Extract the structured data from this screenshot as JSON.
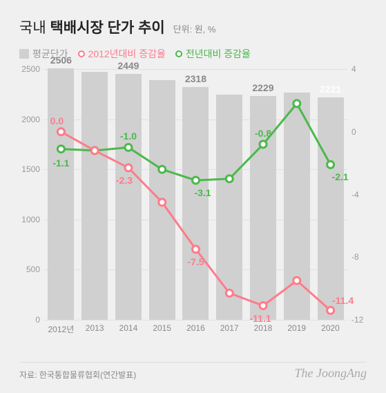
{
  "title_prefix": "국내 ",
  "title_bold": "택배시장 단가 추이",
  "unit_label": "단위: 원, %",
  "legend": {
    "bar": {
      "label": "평균단가",
      "color": "#d0d0d0",
      "text_color": "#999"
    },
    "s1": {
      "label": "2012년대비 증감율",
      "color": "#ff7b8a"
    },
    "s2": {
      "label": "전년대비 증감율",
      "color": "#4bb84b"
    }
  },
  "chart": {
    "background": "#f0f0f0",
    "grid_color": "#e0e0e0",
    "left_axis": {
      "min": 0,
      "max": 2500,
      "step": 500,
      "color": "#999"
    },
    "right_axis": {
      "min": -12,
      "max": 4,
      "step": 4,
      "color": "#999"
    },
    "categories": [
      "2012년",
      "2013",
      "2014",
      "2015",
      "2016",
      "2017",
      "2018",
      "2019",
      "2020"
    ],
    "bar_values": [
      2506,
      2475,
      2449,
      2392,
      2318,
      2248,
      2229,
      2269,
      2221
    ],
    "bar_labels": {
      "0": "2506",
      "2": "2449",
      "4": "2318",
      "6": "2229",
      "8": "2221"
    },
    "bar_label_colors": {
      "0": "#888",
      "2": "#888",
      "4": "#888",
      "6": "#888",
      "8": "#fff"
    },
    "bar_color": "#d0d0d0",
    "s1_values": [
      0.0,
      -1.2,
      -2.3,
      -4.5,
      -7.5,
      -10.3,
      -11.1,
      -9.5,
      -11.4
    ],
    "s1_labels": {
      "0": "0.0",
      "2": "-2.3",
      "4": "-7.5",
      "6": "-11.1",
      "8": "-11.4"
    },
    "s1_color": "#ff7b8a",
    "s2_values": [
      -1.1,
      -1.2,
      -1.0,
      -2.4,
      -3.1,
      -3.0,
      -0.8,
      1.8,
      -2.1
    ],
    "s2_labels": {
      "0": "-1.1",
      "2": "-1.0",
      "4": "-3.1",
      "6": "-0.8",
      "8": "-2.1"
    },
    "s2_color": "#4bb84b",
    "line_width": 3,
    "marker_radius": 5
  },
  "source_prefix": "자료: ",
  "source": "한국통합물류협회(연간발표)",
  "brand": "The JoongAng"
}
